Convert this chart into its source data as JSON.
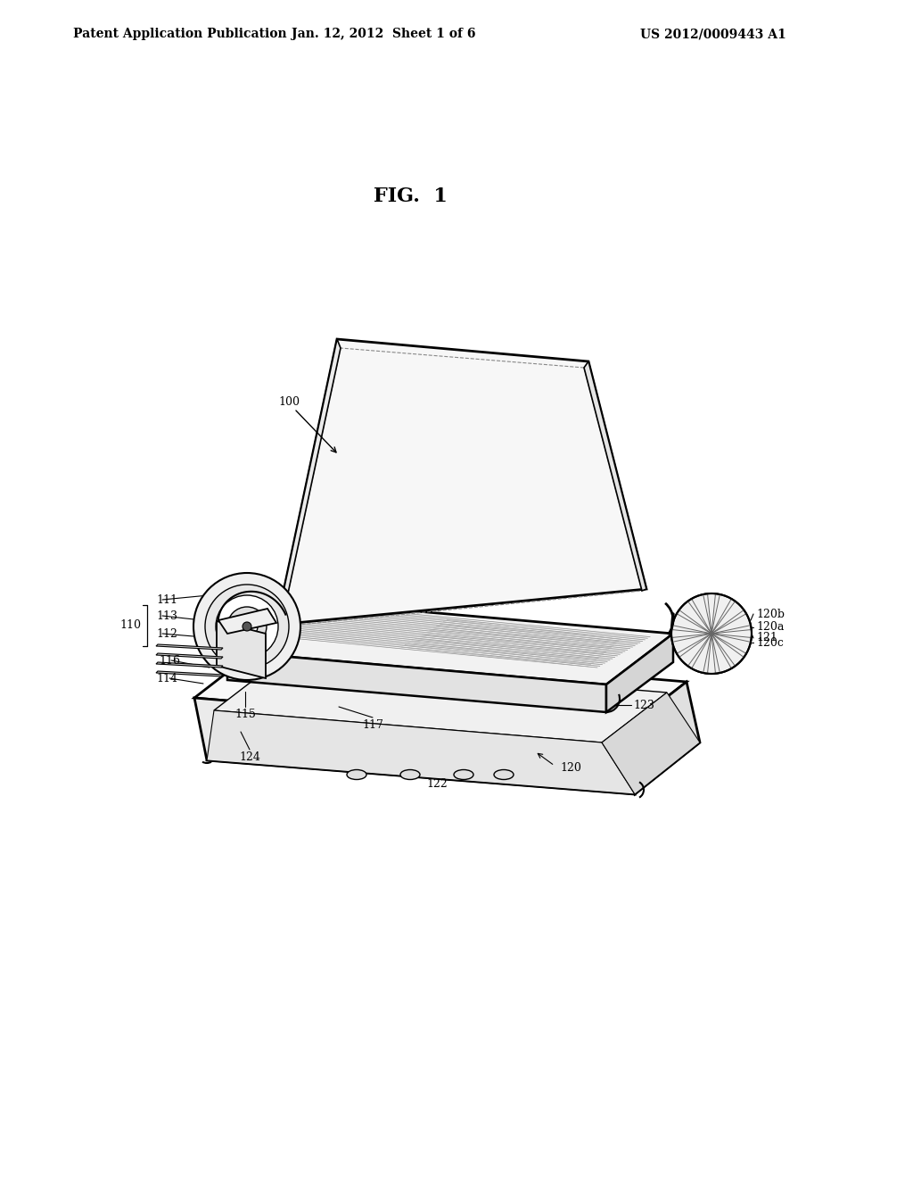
{
  "background_color": "#ffffff",
  "header_left": "Patent Application Publication",
  "header_middle": "Jan. 12, 2012  Sheet 1 of 6",
  "header_right": "US 2012/0009443 A1",
  "fig_label": "FIG.  1"
}
